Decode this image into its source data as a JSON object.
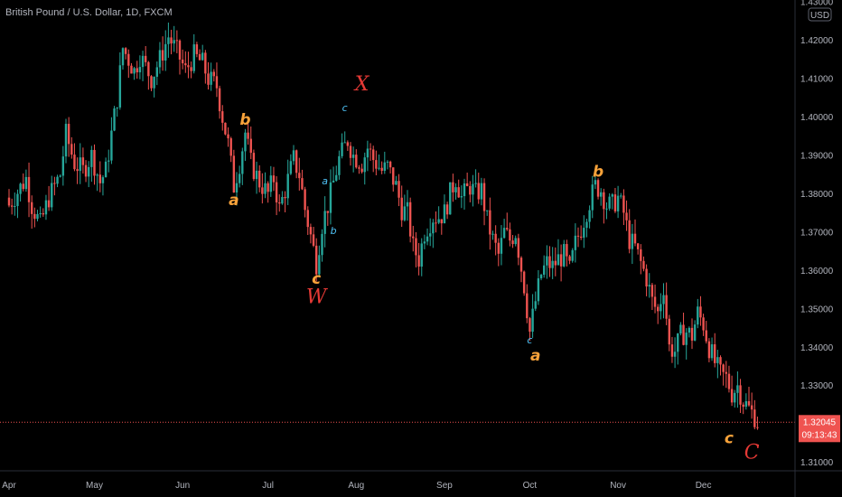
{
  "header": {
    "title": "British Pound / U.S. Dollar, 1D, FXCM"
  },
  "colors": {
    "up": "#26a69a",
    "down": "#ef5350",
    "bg": "#000000",
    "axis_text": "#b2b5be",
    "orange": "#f7a23a",
    "red": "#e53935",
    "blue": "#4fc3f7"
  },
  "chart_data": {
    "type": "candlestick",
    "currency_badge": "USD",
    "ylim": [
      1.3078,
      1.4305
    ],
    "y_ticks": [
      "1.31000",
      "1.32000",
      "1.33000",
      "1.34000",
      "1.35000",
      "1.36000",
      "1.37000",
      "1.38000",
      "1.39000",
      "1.40000",
      "1.41000",
      "1.42000",
      "1.43000"
    ],
    "x_ticks": [
      {
        "label": "Apr",
        "day": 0
      },
      {
        "label": "May",
        "day": 30
      },
      {
        "label": "Jun",
        "day": 61
      },
      {
        "label": "Jul",
        "day": 91
      },
      {
        "label": "Aug",
        "day": 122
      },
      {
        "label": "Sep",
        "day": 153
      },
      {
        "label": "Oct",
        "day": 183
      },
      {
        "label": "Nov",
        "day": 214
      },
      {
        "label": "Dec",
        "day": 244
      }
    ],
    "last_price": "1.32045",
    "countdown": "09:13:43",
    "close_series": [
      [
        0,
        1.377
      ],
      [
        6,
        1.384
      ],
      [
        8,
        1.377
      ],
      [
        11,
        1.372
      ],
      [
        14,
        1.379
      ],
      [
        18,
        1.385
      ],
      [
        20,
        1.3955
      ],
      [
        23,
        1.388
      ],
      [
        26,
        1.386
      ],
      [
        29,
        1.39
      ],
      [
        32,
        1.383
      ],
      [
        34,
        1.386
      ],
      [
        38,
        1.405
      ],
      [
        40,
        1.418
      ],
      [
        44,
        1.412
      ],
      [
        46,
        1.416
      ],
      [
        50,
        1.41
      ],
      [
        53,
        1.415
      ],
      [
        56,
        1.421
      ],
      [
        59,
        1.417
      ],
      [
        62,
        1.412
      ],
      [
        65,
        1.416
      ],
      [
        68,
        1.414
      ],
      [
        70,
        1.41
      ],
      [
        73,
        1.408
      ],
      [
        75,
        1.4
      ],
      [
        77,
        1.393
      ],
      [
        79,
        1.382
      ],
      [
        81,
        1.388
      ],
      [
        83,
        1.396
      ],
      [
        85,
        1.388
      ],
      [
        88,
        1.383
      ],
      [
        91,
        1.38
      ],
      [
        93,
        1.384
      ],
      [
        95,
        1.376
      ],
      [
        97,
        1.381
      ],
      [
        100,
        1.389
      ],
      [
        102,
        1.385
      ],
      [
        104,
        1.376
      ],
      [
        106,
        1.369
      ],
      [
        108,
        1.362
      ],
      [
        110,
        1.372
      ],
      [
        112,
        1.377
      ],
      [
        114,
        1.383
      ],
      [
        116,
        1.389
      ],
      [
        119,
        1.394
      ],
      [
        121,
        1.39
      ],
      [
        124,
        1.388
      ],
      [
        126,
        1.392
      ],
      [
        128,
        1.389
      ],
      [
        131,
        1.386
      ],
      [
        133,
        1.387
      ],
      [
        136,
        1.382
      ],
      [
        138,
        1.376
      ],
      [
        140,
        1.375
      ],
      [
        142,
        1.366
      ],
      [
        144,
        1.363
      ],
      [
        146,
        1.37
      ],
      [
        149,
        1.374
      ],
      [
        151,
        1.374
      ],
      [
        153,
        1.375
      ],
      [
        155,
        1.38
      ],
      [
        157,
        1.384
      ],
      [
        159,
        1.379
      ],
      [
        162,
        1.382
      ],
      [
        164,
        1.38
      ],
      [
        166,
        1.381
      ],
      [
        168,
        1.373
      ],
      [
        170,
        1.368
      ],
      [
        172,
        1.364
      ],
      [
        174,
        1.37
      ],
      [
        176,
        1.368
      ],
      [
        178,
        1.37
      ],
      [
        181,
        1.356
      ],
      [
        183,
        1.344
      ],
      [
        185,
        1.352
      ],
      [
        187,
        1.359
      ],
      [
        189,
        1.362
      ],
      [
        191,
        1.361
      ],
      [
        193,
        1.363
      ],
      [
        195,
        1.364
      ],
      [
        197,
        1.36
      ],
      [
        199,
        1.367
      ],
      [
        201,
        1.371
      ],
      [
        204,
        1.378
      ],
      [
        206,
        1.382
      ],
      [
        208,
        1.381
      ],
      [
        210,
        1.377
      ],
      [
        212,
        1.377
      ],
      [
        214,
        1.379
      ],
      [
        216,
        1.375
      ],
      [
        218,
        1.368
      ],
      [
        220,
        1.366
      ],
      [
        222,
        1.362
      ],
      [
        224,
        1.358
      ],
      [
        226,
        1.352
      ],
      [
        228,
        1.349
      ],
      [
        230,
        1.356
      ],
      [
        232,
        1.34
      ],
      [
        234,
        1.339
      ],
      [
        236,
        1.343
      ],
      [
        238,
        1.344
      ],
      [
        240,
        1.343
      ],
      [
        242,
        1.349
      ],
      [
        244,
        1.346
      ],
      [
        246,
        1.34
      ],
      [
        248,
        1.336
      ],
      [
        250,
        1.333
      ],
      [
        252,
        1.332
      ],
      [
        254,
        1.328
      ],
      [
        256,
        1.33
      ],
      [
        258,
        1.326
      ],
      [
        260,
        1.324
      ],
      [
        262,
        1.322
      ],
      [
        263,
        1.3204
      ]
    ],
    "wave_labels": [
      {
        "text": "a",
        "day": 79,
        "price": 1.377,
        "color": "orange",
        "style": "sm"
      },
      {
        "text": "b",
        "day": 83,
        "price": 1.398,
        "color": "orange",
        "style": "sm"
      },
      {
        "text": "c",
        "day": 108,
        "price": 1.3565,
        "color": "orange",
        "style": "sm"
      },
      {
        "text": "W",
        "day": 108,
        "price": 1.3515,
        "color": "red",
        "style": "lg"
      },
      {
        "text": "a",
        "day": 111,
        "price": 1.3825,
        "color": "blue",
        "style": "xs"
      },
      {
        "text": "b",
        "day": 114,
        "price": 1.3695,
        "color": "blue",
        "style": "xs"
      },
      {
        "text": "c",
        "day": 118,
        "price": 1.4015,
        "color": "blue",
        "style": "xs"
      },
      {
        "text": "X",
        "day": 124,
        "price": 1.407,
        "color": "red",
        "style": "lg"
      },
      {
        "text": "c",
        "day": 183,
        "price": 1.341,
        "color": "blue",
        "style": "xs"
      },
      {
        "text": "a",
        "day": 185,
        "price": 1.3365,
        "color": "orange",
        "style": "sm"
      },
      {
        "text": "b",
        "day": 207,
        "price": 1.3845,
        "color": "orange",
        "style": "sm"
      },
      {
        "text": "c",
        "day": 253,
        "price": 1.315,
        "color": "orange",
        "style": "sm"
      },
      {
        "text": "C",
        "day": 261,
        "price": 1.311,
        "color": "red",
        "style": "lg"
      }
    ]
  }
}
